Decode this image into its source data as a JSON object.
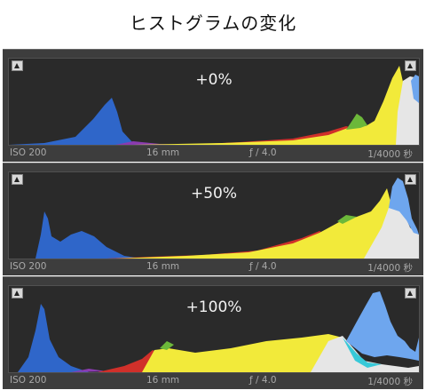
{
  "title": "ヒストグラムの変化",
  "panels": [
    {
      "label": "+0%",
      "iso": "ISO 200",
      "focal": "16 mm",
      "aperture": "ƒ / 4.0",
      "shutter": "1/4000 秒"
    },
    {
      "label": "+50%",
      "iso": "ISO 200",
      "focal": "16 mm",
      "aperture": "ƒ / 4.0",
      "shutter": "1/4000 秒"
    },
    {
      "label": "+100%",
      "iso": "ISO 200",
      "focal": "16 mm",
      "aperture": "ƒ / 4.0",
      "shutter": "1/4000 秒"
    }
  ],
  "colors": {
    "blue": "#2f66c9",
    "light_blue": "#6ea6ee",
    "cyan": "#37c9d8",
    "red": "#d0302a",
    "green": "#6cb83a",
    "yellow": "#f2ea3a",
    "white": "#e6e6e6",
    "purple": "#8a3bb0",
    "background": "#2a2a2a"
  }
}
